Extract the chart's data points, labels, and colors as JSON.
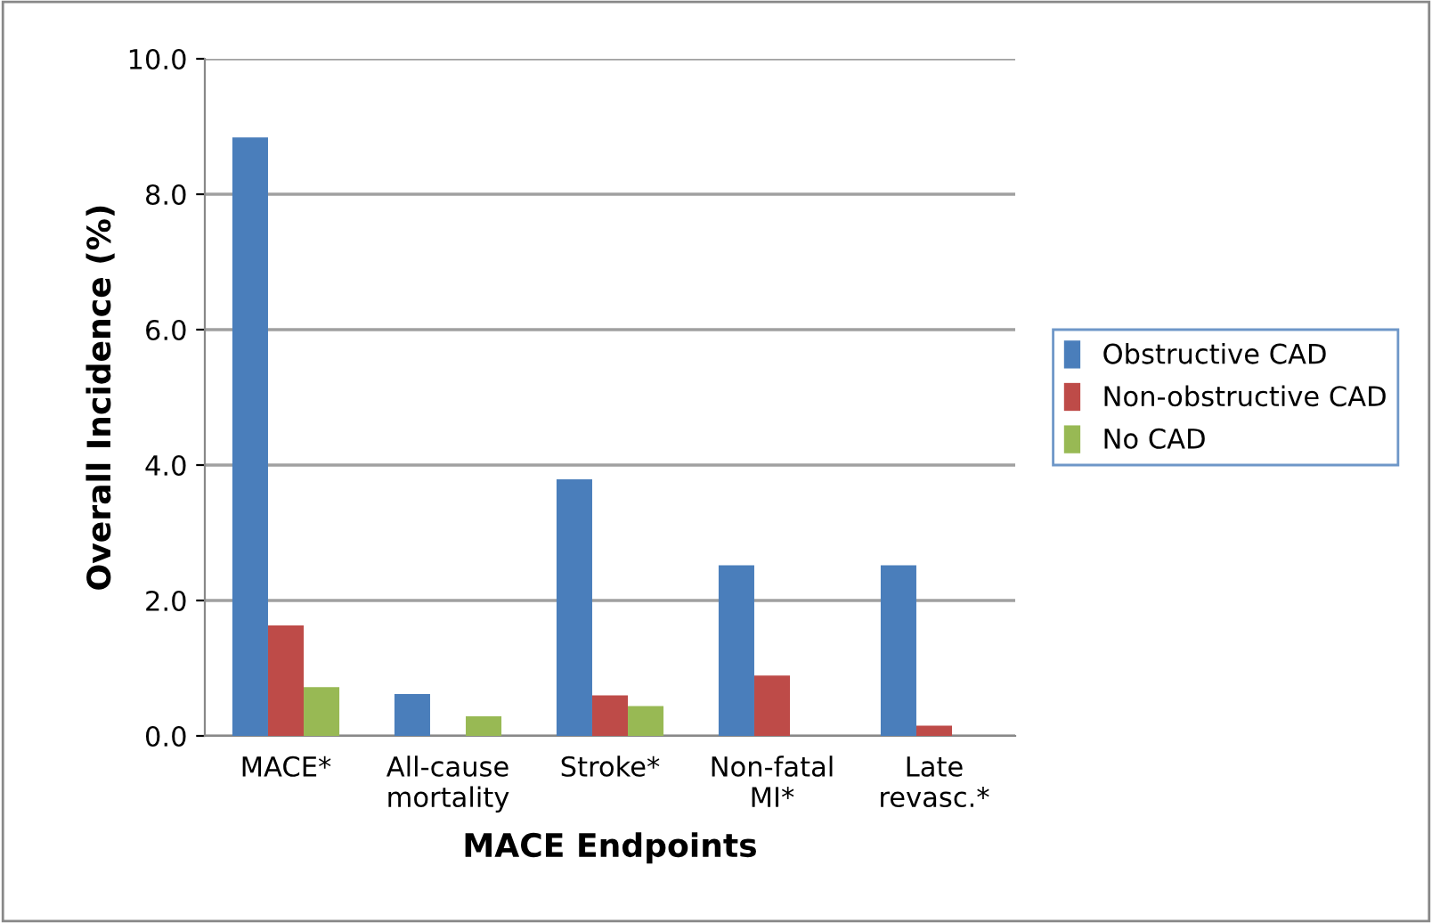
{
  "chart_data": {
    "type": "bar",
    "xlabel": "MACE Endpoints",
    "ylabel": "Overall Incidence (%)",
    "categories": [
      "MACE*",
      "All-cause\nmortality",
      "Stroke*",
      "Non-fatal\nMI*",
      "Late\nrevasc.*"
    ],
    "series": [
      {
        "name": "Obstructive CAD",
        "color": "#4a7ebb",
        "values": [
          8.84,
          0.62,
          3.79,
          2.52,
          2.52
        ]
      },
      {
        "name": "Non-obstructive CAD",
        "color": "#be4b48",
        "values": [
          1.63,
          0,
          0.6,
          0.89,
          0.15
        ]
      },
      {
        "name": "No CAD",
        "color": "#98b954",
        "values": [
          0.72,
          0.29,
          0.44,
          0,
          0
        ]
      }
    ],
    "ylim": [
      0,
      10
    ],
    "yticks": [
      {
        "value": 0,
        "label": "0.0"
      },
      {
        "value": 2,
        "label": "2.0"
      },
      {
        "value": 4,
        "label": "4.0"
      },
      {
        "value": 6,
        "label": "6.0"
      },
      {
        "value": 8,
        "label": "8.0"
      },
      {
        "value": 10,
        "label": "10.0"
      }
    ],
    "grid": "y",
    "legend": "right"
  }
}
